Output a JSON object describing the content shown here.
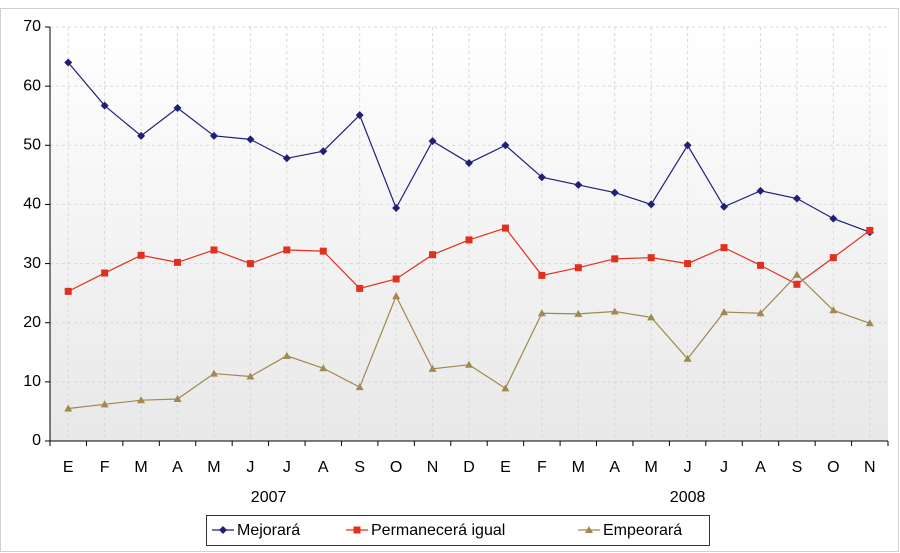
{
  "chart_data": {
    "type": "line",
    "categories": [
      "E",
      "F",
      "M",
      "A",
      "M",
      "J",
      "J",
      "A",
      "S",
      "O",
      "N",
      "D",
      "E",
      "F",
      "M",
      "A",
      "M",
      "J",
      "J",
      "A",
      "S",
      "O",
      "N"
    ],
    "year_labels": [
      "2007",
      "2008"
    ],
    "ylim": [
      0,
      70
    ],
    "yticks": [
      0,
      10,
      20,
      30,
      40,
      50,
      60,
      70
    ],
    "grid": true,
    "legend": "bottom",
    "series": [
      {
        "name": "Mejorará",
        "color": "#1f1f7a",
        "marker": "diamond",
        "values": [
          64,
          56.7,
          51.6,
          56.3,
          51.6,
          51,
          47.8,
          49,
          55.1,
          39.4,
          50.7,
          47,
          50,
          44.6,
          43.3,
          42,
          40,
          50,
          39.6,
          42.3,
          41,
          37.6,
          35.3
        ]
      },
      {
        "name": "Permanecerá igual",
        "color": "#e0301e",
        "marker": "square",
        "values": [
          25.3,
          28.4,
          31.4,
          30.2,
          32.3,
          30,
          32.3,
          32.1,
          25.8,
          27.4,
          31.5,
          34,
          36,
          28,
          29.3,
          30.8,
          31,
          30,
          32.7,
          29.7,
          26.5,
          31,
          35.6
        ]
      },
      {
        "name": "Empeorará",
        "color": "#a08850",
        "marker": "triangle",
        "values": [
          5.5,
          6.2,
          6.9,
          7.1,
          11.4,
          10.9,
          14.4,
          12.3,
          9.1,
          24.5,
          12.2,
          12.9,
          8.9,
          21.6,
          21.5,
          21.9,
          20.9,
          13.9,
          21.8,
          21.6,
          28.1,
          22.1,
          19.9
        ]
      }
    ]
  }
}
